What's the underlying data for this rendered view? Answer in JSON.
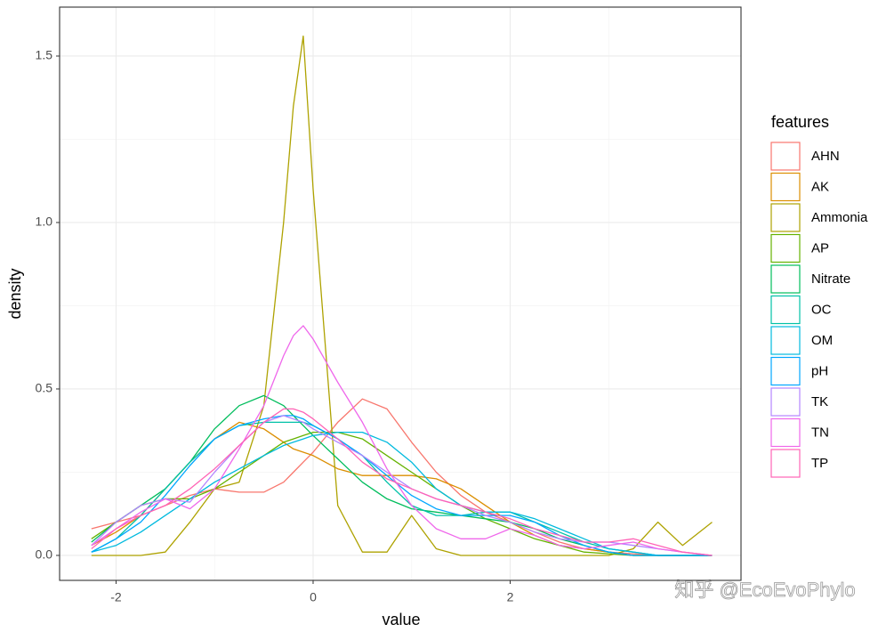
{
  "chart_data": {
    "type": "line",
    "x_label": "value",
    "y_label": "density",
    "legend_title": "features",
    "x": [
      -2.25,
      -2,
      -1.75,
      -1.5,
      -1.25,
      -1,
      -0.75,
      -0.5,
      -0.3,
      -0.2,
      -0.1,
      0,
      0.25,
      0.5,
      0.75,
      1,
      1.25,
      1.5,
      1.75,
      2,
      2.25,
      2.5,
      2.75,
      3,
      3.25,
      3.5,
      3.75,
      4.05
    ],
    "series": [
      {
        "name": "AHN",
        "color": "#F8766D",
        "values": [
          0.08,
          0.1,
          0.12,
          0.15,
          0.18,
          0.2,
          0.19,
          0.19,
          0.22,
          0.25,
          0.28,
          0.31,
          0.4,
          0.47,
          0.44,
          0.34,
          0.25,
          0.18,
          0.13,
          0.1,
          0.07,
          0.04,
          0.02,
          0.01,
          0.005,
          0,
          0,
          0
        ]
      },
      {
        "name": "AK",
        "color": "#DB8E00",
        "values": [
          0.03,
          0.07,
          0.12,
          0.2,
          0.28,
          0.35,
          0.4,
          0.38,
          0.34,
          0.32,
          0.31,
          0.3,
          0.26,
          0.24,
          0.24,
          0.24,
          0.23,
          0.2,
          0.15,
          0.1,
          0.06,
          0.03,
          0.02,
          0.01,
          0,
          0,
          0,
          0
        ]
      },
      {
        "name": "Ammonia",
        "color": "#AEA200",
        "values": [
          0,
          0,
          0,
          0.01,
          0.1,
          0.2,
          0.22,
          0.45,
          1.0,
          1.35,
          1.56,
          1.1,
          0.15,
          0.01,
          0.01,
          0.12,
          0.02,
          0,
          0,
          0,
          0,
          0,
          0,
          0,
          0.02,
          0.1,
          0.03,
          0.1
        ]
      },
      {
        "name": "AP",
        "color": "#64B200",
        "values": [
          0.05,
          0.1,
          0.15,
          0.17,
          0.17,
          0.2,
          0.25,
          0.3,
          0.34,
          0.35,
          0.36,
          0.37,
          0.37,
          0.35,
          0.3,
          0.25,
          0.2,
          0.15,
          0.11,
          0.08,
          0.05,
          0.03,
          0.01,
          0.005,
          0,
          0,
          0,
          0
        ]
      },
      {
        "name": "Nitrate",
        "color": "#00BD5C",
        "values": [
          0.04,
          0.1,
          0.15,
          0.2,
          0.28,
          0.38,
          0.45,
          0.48,
          0.45,
          0.42,
          0.39,
          0.36,
          0.29,
          0.22,
          0.17,
          0.14,
          0.13,
          0.12,
          0.11,
          0.1,
          0.08,
          0.05,
          0.03,
          0.01,
          0,
          0,
          0,
          0
        ]
      },
      {
        "name": "OC",
        "color": "#00C1A7",
        "values": [
          0.01,
          0.05,
          0.12,
          0.2,
          0.28,
          0.35,
          0.39,
          0.4,
          0.4,
          0.4,
          0.4,
          0.39,
          0.35,
          0.3,
          0.22,
          0.15,
          0.12,
          0.12,
          0.13,
          0.13,
          0.1,
          0.07,
          0.04,
          0.02,
          0.01,
          0,
          0,
          0
        ]
      },
      {
        "name": "OM",
        "color": "#00BADE",
        "values": [
          0.01,
          0.03,
          0.07,
          0.12,
          0.17,
          0.22,
          0.26,
          0.3,
          0.33,
          0.34,
          0.35,
          0.36,
          0.37,
          0.37,
          0.34,
          0.28,
          0.2,
          0.15,
          0.13,
          0.13,
          0.11,
          0.08,
          0.05,
          0.02,
          0.01,
          0,
          0,
          0
        ]
      },
      {
        "name": "pH",
        "color": "#00A6FF",
        "values": [
          0.01,
          0.05,
          0.1,
          0.18,
          0.27,
          0.35,
          0.39,
          0.41,
          0.42,
          0.42,
          0.41,
          0.39,
          0.35,
          0.3,
          0.24,
          0.18,
          0.14,
          0.12,
          0.12,
          0.12,
          0.1,
          0.06,
          0.03,
          0.01,
          0,
          0,
          0,
          0
        ]
      },
      {
        "name": "TK",
        "color": "#B385FF",
        "values": [
          0.03,
          0.1,
          0.15,
          0.17,
          0.16,
          0.25,
          0.33,
          0.4,
          0.42,
          0.41,
          0.4,
          0.38,
          0.34,
          0.3,
          0.25,
          0.2,
          0.17,
          0.15,
          0.12,
          0.1,
          0.07,
          0.05,
          0.04,
          0.04,
          0.03,
          0.02,
          0.01,
          0
        ]
      },
      {
        "name": "TN",
        "color": "#EF67EB",
        "values": [
          0.03,
          0.08,
          0.13,
          0.17,
          0.14,
          0.2,
          0.32,
          0.45,
          0.6,
          0.66,
          0.69,
          0.65,
          0.52,
          0.4,
          0.26,
          0.15,
          0.08,
          0.05,
          0.05,
          0.08,
          0.06,
          0.03,
          0.02,
          0.03,
          0.04,
          0.02,
          0.01,
          0
        ]
      },
      {
        "name": "TP",
        "color": "#FF63B6",
        "values": [
          0.02,
          0.08,
          0.12,
          0.15,
          0.2,
          0.26,
          0.33,
          0.4,
          0.44,
          0.44,
          0.43,
          0.41,
          0.35,
          0.28,
          0.23,
          0.2,
          0.17,
          0.15,
          0.13,
          0.11,
          0.08,
          0.06,
          0.04,
          0.04,
          0.05,
          0.03,
          0.01,
          0
        ]
      }
    ],
    "xlim": [
      -2.573,
      4.343
    ],
    "ylim": [
      -0.075,
      1.647
    ],
    "xticks": [
      -2,
      0,
      2
    ],
    "yticks": [
      0.0,
      0.5,
      1.0,
      1.5
    ],
    "x_minor_ticks": [
      -1,
      1,
      3
    ],
    "y_minor_ticks": [
      0.25,
      0.75,
      1.25
    ],
    "grid": true,
    "legend_position": "right",
    "watermark": "知乎 @EcoEvoPhylo"
  }
}
